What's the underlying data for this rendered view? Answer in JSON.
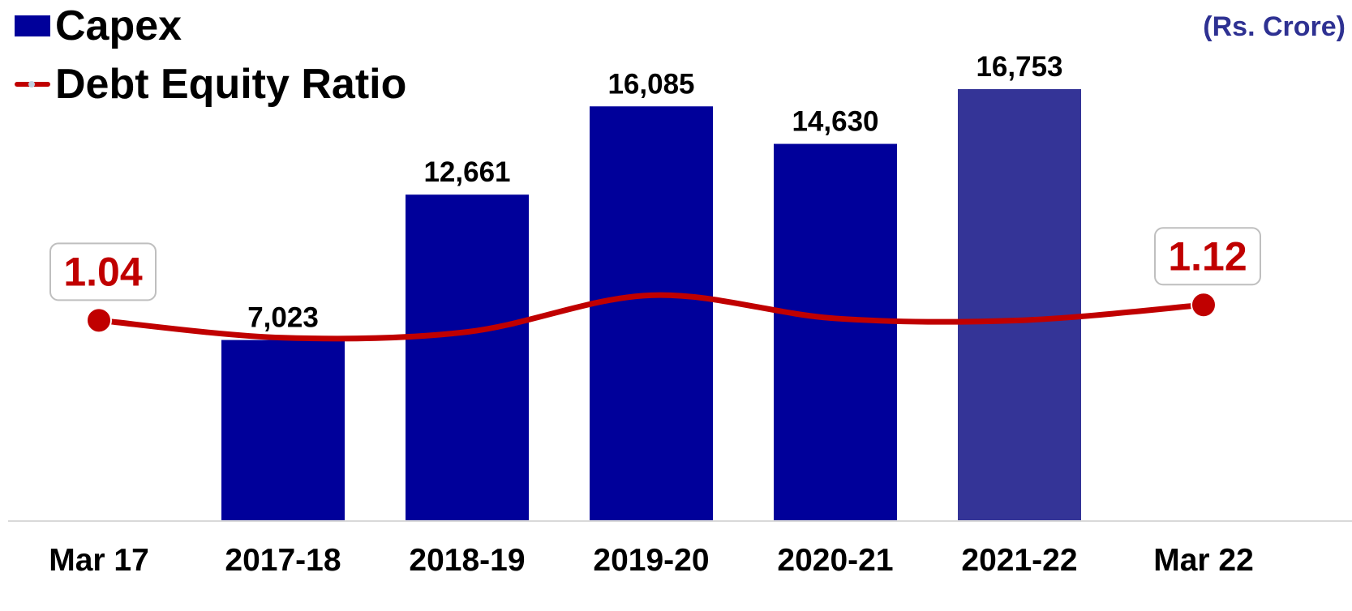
{
  "legend": {
    "capex_label": "Capex",
    "de_label": "Debt Equity Ratio"
  },
  "unit_label": "(Rs. Crore)",
  "colors": {
    "bar": "#00009a",
    "bar_highlight": "#343497",
    "line": "#c00000",
    "unit_text": "#2e3192",
    "axis": "#d9d9d9",
    "label_box_border": "#bfbfbf"
  },
  "chart_data": {
    "type": "bar",
    "categories": [
      "Mar 17",
      "2017-18",
      "2018-19",
      "2019-20",
      "2020-21",
      "2021-22",
      "Mar 22"
    ],
    "series": [
      {
        "name": "Capex",
        "type": "bar",
        "values": [
          null,
          7023,
          12661,
          16085,
          14630,
          16753,
          null
        ],
        "labels": [
          "",
          "7,023",
          "12,661",
          "16,085",
          "14,630",
          "16,753",
          ""
        ]
      },
      {
        "name": "Debt Equity Ratio",
        "type": "line",
        "smooth": true,
        "values": [
          1.04,
          0.95,
          0.98,
          1.17,
          1.05,
          1.04,
          1.12
        ],
        "labels": [
          "1.04",
          "",
          "",
          "",
          "",
          "",
          "1.12"
        ]
      }
    ],
    "ylim": [
      0,
      19500
    ],
    "line_ylim": [
      0,
      2.7
    ],
    "grid": false,
    "legend_position": "top-left"
  }
}
